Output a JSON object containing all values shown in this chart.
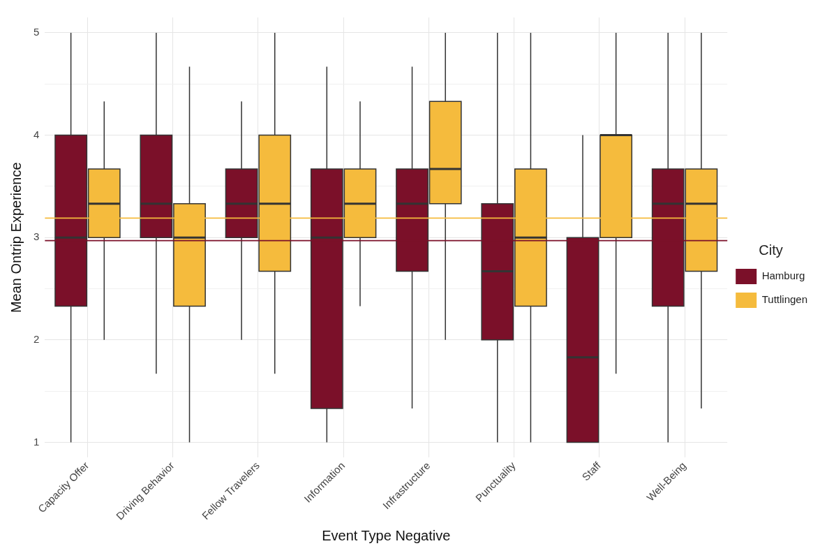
{
  "chart_data": {
    "type": "box",
    "xlabel": "Event Type Negative",
    "ylabel": "Mean Ontrip Experience",
    "legend_title": "City",
    "legend": "right",
    "grid": true,
    "categories": [
      "Capacity Offer",
      "Driving Behavior",
      "Fellow Travelers",
      "Information",
      "Infrastructure",
      "Punctuality",
      "Staff",
      "Well-Being"
    ],
    "ylim": [
      0.85,
      5.15
    ],
    "yticks": [
      1,
      {
        "value": 1.5,
        "label": null
      },
      2,
      {
        "value": 2.5,
        "label": null
      },
      3,
      {
        "value": 3.5,
        "label": null
      },
      4,
      {
        "value": 4.5,
        "label": null
      },
      5
    ],
    "series": [
      {
        "name": "Hamburg",
        "color": "#7b1029",
        "boxes": [
          {
            "low": 1,
            "q1": 2.33,
            "median": 3,
            "q3": 4,
            "high": 5
          },
          {
            "low": 1.67,
            "q1": 3,
            "median": 3.33,
            "q3": 4,
            "high": 5
          },
          {
            "low": 2,
            "q1": 3,
            "median": 3.33,
            "q3": 3.67,
            "high": 4.33
          },
          {
            "low": 1,
            "q1": 1.33,
            "median": 3,
            "q3": 3.67,
            "high": 4.67
          },
          {
            "low": 1.33,
            "q1": 2.67,
            "median": 3.33,
            "q3": 3.67,
            "high": 4.67
          },
          {
            "low": 1,
            "q1": 2,
            "median": 2.67,
            "q3": 3.33,
            "high": 5
          },
          {
            "low": 1,
            "q1": 1,
            "median": 1.83,
            "q3": 3,
            "high": 4
          },
          {
            "low": 1,
            "q1": 2.33,
            "median": 3.33,
            "q3": 3.67,
            "high": 5
          }
        ]
      },
      {
        "name": "Tuttlingen",
        "color": "#f5bb3d",
        "boxes": [
          {
            "low": 2,
            "q1": 3,
            "median": 3.33,
            "q3": 3.67,
            "high": 4.33
          },
          {
            "low": 1,
            "q1": 2.33,
            "median": 3,
            "q3": 3.33,
            "high": 4.67
          },
          {
            "low": 1.67,
            "q1": 2.67,
            "median": 3.33,
            "q3": 4,
            "high": 5
          },
          {
            "low": 2.33,
            "q1": 3,
            "median": 3.33,
            "q3": 3.67,
            "high": 4.33
          },
          {
            "low": 2,
            "q1": 3.33,
            "median": 3.67,
            "q3": 4.33,
            "high": 5
          },
          {
            "low": 1,
            "q1": 2.33,
            "median": 3,
            "q3": 3.67,
            "high": 5
          },
          {
            "low": 1.67,
            "q1": 3,
            "median": 4,
            "q3": 4,
            "high": 5
          },
          {
            "low": 1.33,
            "q1": 2.67,
            "median": 3.33,
            "q3": 3.67,
            "high": 5
          }
        ]
      }
    ],
    "ref_lines": [
      {
        "axis": "y",
        "value": 3.19,
        "color": "#f5bb3d"
      },
      {
        "axis": "y",
        "value": 2.97,
        "color": "#7b1029"
      }
    ]
  }
}
